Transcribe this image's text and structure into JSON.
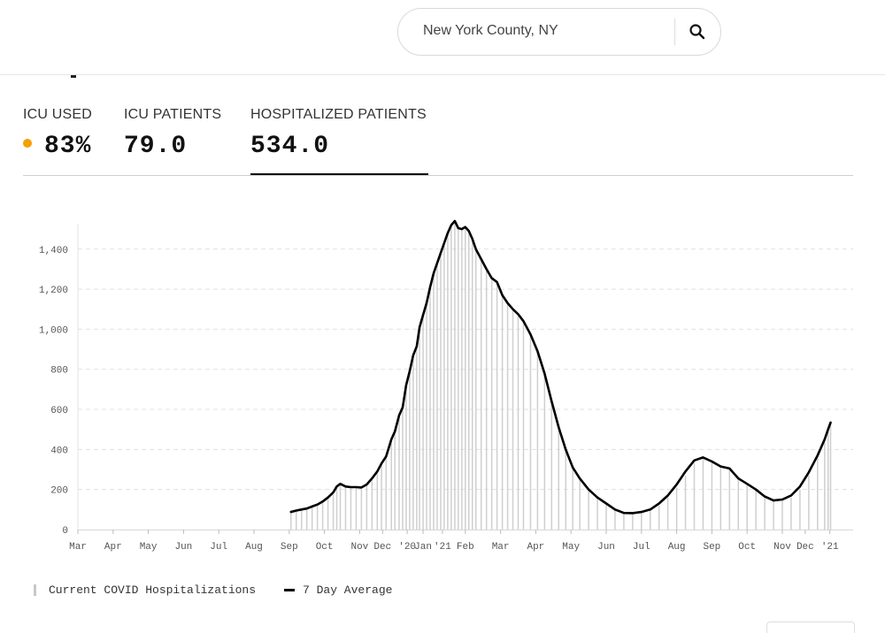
{
  "search": {
    "value": "New York County, NY",
    "icon": "search-icon"
  },
  "tabs": [
    {
      "label": "ICU USED",
      "value": "83%",
      "dot_color": "#f5a000",
      "active": false
    },
    {
      "label": "ICU PATIENTS",
      "value": "79.0",
      "active": false
    },
    {
      "label": "HOSPITALIZED PATIENTS",
      "value": "534.0",
      "active": true
    }
  ],
  "legend": {
    "bars": "Current COVID Hospitalizations",
    "line": "7 Day Average"
  },
  "colors": {
    "bars": "#cfcfcf",
    "line": "#000000",
    "grid": "#e0e0e0",
    "accent_dot": "#f5a000"
  },
  "chart_data": {
    "type": "bar",
    "ylim": [
      0,
      1550
    ],
    "yticks": [
      0,
      200,
      400,
      600,
      800,
      1000,
      1200,
      1400
    ],
    "ytick_labels": [
      "0",
      "200",
      "400",
      "600",
      "800",
      "1,000",
      "1,200",
      "1,400"
    ],
    "xlim": [
      0,
      21.5
    ],
    "xticks": [
      {
        "x": 0,
        "label": "Mar"
      },
      {
        "x": 1,
        "label": "Apr"
      },
      {
        "x": 2,
        "label": "May"
      },
      {
        "x": 3,
        "label": "Jun"
      },
      {
        "x": 4,
        "label": "Jul"
      },
      {
        "x": 5,
        "label": "Aug"
      },
      {
        "x": 6,
        "label": "Sep"
      },
      {
        "x": 7,
        "label": "Oct"
      },
      {
        "x": 8,
        "label": "Nov"
      },
      {
        "x": 8.65,
        "label": "Dec"
      },
      {
        "x": 9.35,
        "label": "'20"
      },
      {
        "x": 9.8,
        "label": "Jan"
      },
      {
        "x": 10.35,
        "label": "'21"
      },
      {
        "x": 11,
        "label": "Feb"
      },
      {
        "x": 12,
        "label": "Mar"
      },
      {
        "x": 13,
        "label": "Apr"
      },
      {
        "x": 14,
        "label": "May"
      },
      {
        "x": 15,
        "label": "Jun"
      },
      {
        "x": 16,
        "label": "Jul"
      },
      {
        "x": 17,
        "label": "Aug"
      },
      {
        "x": 18,
        "label": "Sep"
      },
      {
        "x": 19,
        "label": "Oct"
      },
      {
        "x": 20,
        "label": "Nov"
      },
      {
        "x": 20.65,
        "label": "Dec"
      },
      {
        "x": 21.35,
        "label": "'21"
      }
    ],
    "series": [
      {
        "kind": "bars",
        "values": [
          [
            6.05,
            85
          ],
          [
            6.2,
            95
          ],
          [
            6.35,
            100
          ],
          [
            6.5,
            105
          ],
          [
            6.65,
            115
          ],
          [
            6.8,
            125
          ],
          [
            6.95,
            140
          ],
          [
            7.1,
            160
          ],
          [
            7.25,
            175
          ],
          [
            7.35,
            215
          ],
          [
            7.45,
            228
          ],
          [
            7.6,
            215
          ],
          [
            7.75,
            212
          ],
          [
            7.9,
            212
          ],
          [
            8.05,
            208
          ],
          [
            8.2,
            220
          ],
          [
            8.35,
            248
          ],
          [
            8.5,
            280
          ],
          [
            8.62,
            330
          ],
          [
            8.75,
            360
          ],
          [
            8.9,
            450
          ],
          [
            9.0,
            490
          ],
          [
            9.12,
            570
          ],
          [
            9.22,
            610
          ],
          [
            9.32,
            720
          ],
          [
            9.42,
            780
          ],
          [
            9.52,
            860
          ],
          [
            9.62,
            915
          ],
          [
            9.7,
            1000
          ],
          [
            9.8,
            1070
          ],
          [
            9.9,
            1120
          ],
          [
            10.0,
            1200
          ],
          [
            10.1,
            1280
          ],
          [
            10.2,
            1330
          ],
          [
            10.3,
            1380
          ],
          [
            10.4,
            1430
          ],
          [
            10.5,
            1480
          ],
          [
            10.6,
            1520
          ],
          [
            10.7,
            1540
          ],
          [
            10.8,
            1505
          ],
          [
            10.9,
            1500
          ],
          [
            11.0,
            1510
          ],
          [
            11.1,
            1490
          ],
          [
            11.2,
            1450
          ],
          [
            11.3,
            1400
          ],
          [
            11.45,
            1350
          ],
          [
            11.6,
            1300
          ],
          [
            11.75,
            1250
          ],
          [
            11.9,
            1230
          ],
          [
            12.05,
            1170
          ],
          [
            12.2,
            1130
          ],
          [
            12.35,
            1100
          ],
          [
            12.5,
            1080
          ],
          [
            12.65,
            1040
          ],
          [
            12.85,
            970
          ],
          [
            13.05,
            890
          ],
          [
            13.25,
            780
          ],
          [
            13.45,
            640
          ],
          [
            13.65,
            510
          ],
          [
            13.85,
            400
          ],
          [
            14.05,
            310
          ],
          [
            14.25,
            250
          ],
          [
            14.5,
            200
          ],
          [
            14.75,
            160
          ],
          [
            15.0,
            130
          ],
          [
            15.25,
            100
          ],
          [
            15.5,
            85
          ],
          [
            15.75,
            80
          ],
          [
            16.0,
            85
          ],
          [
            16.25,
            95
          ],
          [
            16.5,
            120
          ],
          [
            16.75,
            160
          ],
          [
            17.0,
            210
          ],
          [
            17.25,
            270
          ],
          [
            17.5,
            330
          ],
          [
            17.75,
            360
          ],
          [
            18.0,
            340
          ],
          [
            18.25,
            315
          ],
          [
            18.5,
            305
          ],
          [
            18.75,
            250
          ],
          [
            19.0,
            225
          ],
          [
            19.25,
            200
          ],
          [
            19.5,
            170
          ],
          [
            19.75,
            140
          ],
          [
            20.0,
            145
          ],
          [
            20.25,
            160
          ],
          [
            20.5,
            200
          ],
          [
            20.75,
            270
          ],
          [
            21.0,
            370
          ],
          [
            21.2,
            440
          ],
          [
            21.3,
            500
          ],
          [
            21.37,
            534
          ]
        ]
      },
      {
        "kind": "line",
        "values": [
          [
            6.05,
            88
          ],
          [
            6.2,
            95
          ],
          [
            6.35,
            100
          ],
          [
            6.5,
            105
          ],
          [
            6.65,
            115
          ],
          [
            6.8,
            125
          ],
          [
            6.95,
            140
          ],
          [
            7.1,
            160
          ],
          [
            7.25,
            185
          ],
          [
            7.35,
            215
          ],
          [
            7.45,
            228
          ],
          [
            7.6,
            215
          ],
          [
            7.75,
            212
          ],
          [
            7.9,
            212
          ],
          [
            8.05,
            210
          ],
          [
            8.2,
            225
          ],
          [
            8.35,
            255
          ],
          [
            8.5,
            290
          ],
          [
            8.62,
            330
          ],
          [
            8.75,
            365
          ],
          [
            8.9,
            450
          ],
          [
            9.0,
            490
          ],
          [
            9.12,
            570
          ],
          [
            9.22,
            610
          ],
          [
            9.32,
            720
          ],
          [
            9.42,
            790
          ],
          [
            9.52,
            870
          ],
          [
            9.62,
            915
          ],
          [
            9.7,
            1010
          ],
          [
            9.8,
            1070
          ],
          [
            9.9,
            1130
          ],
          [
            10.0,
            1210
          ],
          [
            10.1,
            1280
          ],
          [
            10.2,
            1330
          ],
          [
            10.3,
            1380
          ],
          [
            10.4,
            1430
          ],
          [
            10.5,
            1480
          ],
          [
            10.6,
            1520
          ],
          [
            10.7,
            1540
          ],
          [
            10.8,
            1505
          ],
          [
            10.9,
            1500
          ],
          [
            11.0,
            1510
          ],
          [
            11.1,
            1490
          ],
          [
            11.2,
            1450
          ],
          [
            11.3,
            1400
          ],
          [
            11.45,
            1350
          ],
          [
            11.6,
            1300
          ],
          [
            11.75,
            1255
          ],
          [
            11.9,
            1235
          ],
          [
            12.05,
            1170
          ],
          [
            12.2,
            1130
          ],
          [
            12.35,
            1100
          ],
          [
            12.5,
            1075
          ],
          [
            12.65,
            1040
          ],
          [
            12.85,
            975
          ],
          [
            13.05,
            890
          ],
          [
            13.25,
            780
          ],
          [
            13.45,
            640
          ],
          [
            13.65,
            510
          ],
          [
            13.85,
            400
          ],
          [
            14.05,
            310
          ],
          [
            14.25,
            255
          ],
          [
            14.5,
            200
          ],
          [
            14.75,
            160
          ],
          [
            15.0,
            130
          ],
          [
            15.25,
            100
          ],
          [
            15.5,
            83
          ],
          [
            15.75,
            82
          ],
          [
            16.0,
            88
          ],
          [
            16.25,
            100
          ],
          [
            16.5,
            130
          ],
          [
            16.75,
            170
          ],
          [
            17.0,
            225
          ],
          [
            17.25,
            290
          ],
          [
            17.5,
            345
          ],
          [
            17.75,
            360
          ],
          [
            18.0,
            340
          ],
          [
            18.25,
            315
          ],
          [
            18.5,
            305
          ],
          [
            18.75,
            255
          ],
          [
            19.0,
            228
          ],
          [
            19.25,
            200
          ],
          [
            19.5,
            165
          ],
          [
            19.75,
            145
          ],
          [
            20.0,
            150
          ],
          [
            20.25,
            170
          ],
          [
            20.5,
            215
          ],
          [
            20.75,
            285
          ],
          [
            21.0,
            370
          ],
          [
            21.2,
            450
          ],
          [
            21.3,
            500
          ],
          [
            21.37,
            534
          ]
        ]
      }
    ]
  }
}
